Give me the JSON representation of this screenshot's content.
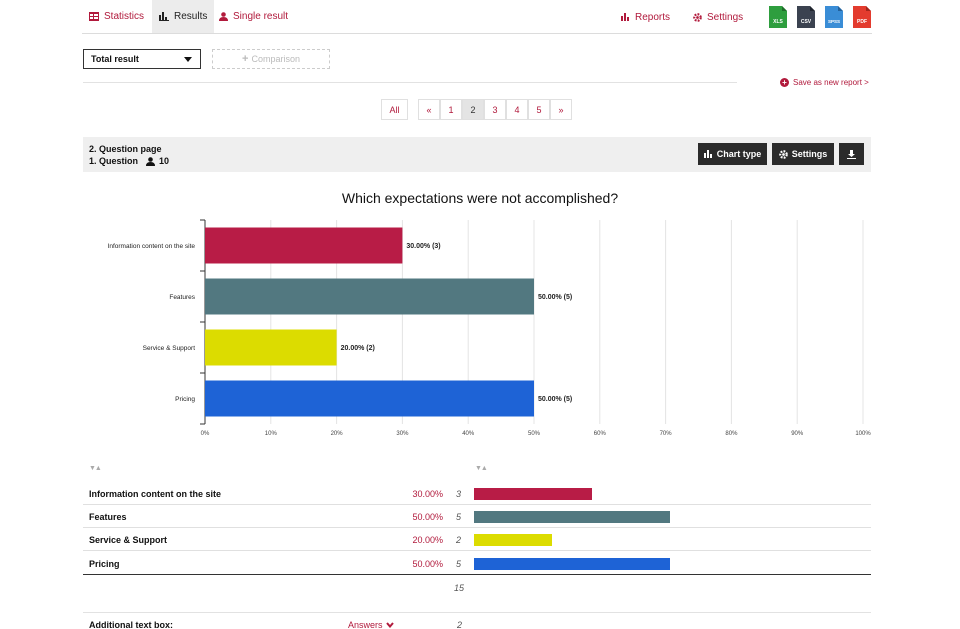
{
  "nav": {
    "tabs": [
      {
        "label": "Statistics",
        "icon": "table-icon"
      },
      {
        "label": "Results",
        "icon": "bar-chart-icon",
        "active": true
      },
      {
        "label": "Single result",
        "icon": "user-icon"
      }
    ],
    "reports_label": "Reports",
    "settings_label": "Settings",
    "exports": [
      {
        "label": "XLS",
        "color": "#2e9e3e"
      },
      {
        "label": "CSV",
        "color": "#3b4250"
      },
      {
        "label": "SPSS",
        "color": "#3a8dd6"
      },
      {
        "label": "PDF",
        "color": "#e33b2e"
      }
    ]
  },
  "filter": {
    "selected": "Total result",
    "comparison_label": "Comparison",
    "save_report_label": "Save as new report >"
  },
  "pagination": {
    "all_label": "All",
    "prev_label": "«",
    "next_label": "»",
    "pages": [
      "1",
      "2",
      "3",
      "4",
      "5"
    ],
    "current": "2"
  },
  "question": {
    "page_label": "2. Question page",
    "question_label": "1. Question",
    "respondents": "10",
    "chart_type_label": "Chart type",
    "settings_label": "Settings"
  },
  "chart_data": {
    "type": "bar",
    "orientation": "horizontal",
    "title": "Which expectations were not accomplished?",
    "categories": [
      "Information content on the site",
      "Features",
      "Service & Support",
      "Pricing"
    ],
    "values": [
      30,
      50,
      20,
      50
    ],
    "counts": [
      3,
      5,
      2,
      5
    ],
    "data_labels": [
      "30.00% (3)",
      "50.00% (5)",
      "20.00% (2)",
      "50.00% (5)"
    ],
    "colors": [
      "#b81c46",
      "#527880",
      "#dcdc00",
      "#1e63d6"
    ],
    "xlim": [
      0,
      100
    ],
    "xticks": [
      "0%",
      "10%",
      "20%",
      "30%",
      "40%",
      "50%",
      "60%",
      "70%",
      "80%",
      "90%",
      "100%"
    ],
    "grid": true
  },
  "table": {
    "rows": [
      {
        "name": "Information content on the site",
        "pct": "30.00%",
        "count": "3",
        "value": 30,
        "color": "#b81c46"
      },
      {
        "name": "Features",
        "pct": "50.00%",
        "count": "5",
        "value": 50,
        "color": "#527880"
      },
      {
        "name": "Service & Support",
        "pct": "20.00%",
        "count": "2",
        "value": 20,
        "color": "#dcdc00"
      },
      {
        "name": "Pricing",
        "pct": "50.00%",
        "count": "5",
        "value": 50,
        "color": "#1e63d6"
      }
    ],
    "total": "15",
    "additional_label": "Additional text box:",
    "answers_label": "Answers",
    "additional_count": "2"
  }
}
